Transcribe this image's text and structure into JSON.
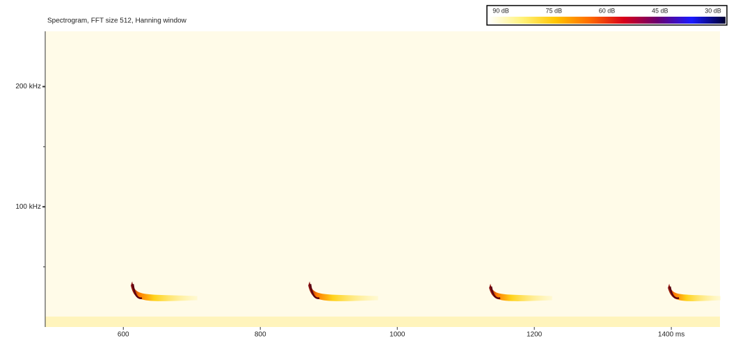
{
  "chart_data": {
    "type": "spectrogram",
    "title": "Spectrogram, FFT size 512, Hanning window",
    "xlim": [
      486,
      1471
    ],
    "xticks": [
      600,
      800,
      1000,
      1200,
      {
        "value": 1400,
        "label": "1400 ms"
      }
    ],
    "ylim": [
      0,
      246
    ],
    "yticks": [
      {
        "value": 100,
        "label": "100 kHz"
      },
      {
        "value": 200,
        "label": "200 kHz"
      }
    ],
    "yminor": [
      50,
      150
    ],
    "background": "#fffbe8",
    "calls": [
      {
        "t": 613,
        "duration": 95,
        "f_start": 38,
        "f_end": 24
      },
      {
        "t": 872,
        "duration": 100,
        "f_start": 38,
        "f_end": 24
      },
      {
        "t": 1136,
        "duration": 90,
        "f_start": 36,
        "f_end": 24
      },
      {
        "t": 1397,
        "duration": 75,
        "f_start": 36,
        "f_end": 24
      }
    ],
    "colorbar": {
      "labels": [
        "90 dB",
        "75 dB",
        "60 dB",
        "45 dB",
        "30 dB"
      ],
      "colors": [
        "#ffffff",
        "#fff27a",
        "#ffc400",
        "#ff6a00",
        "#d8001a",
        "#6a0070",
        "#1a1aff",
        "#000030"
      ]
    }
  }
}
